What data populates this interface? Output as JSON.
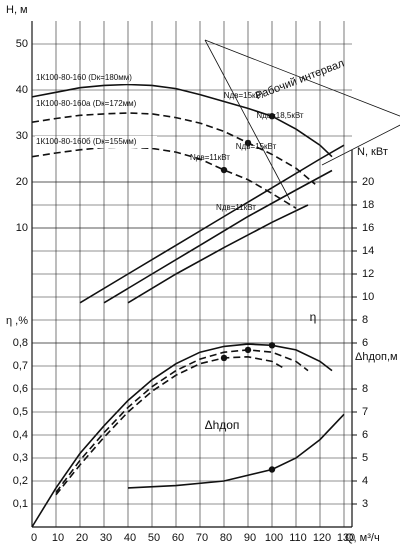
{
  "chart_data": [
    {
      "type": "line",
      "y_label": "H, м",
      "y2_label": "N, кВт",
      "xlim": [
        0,
        130
      ],
      "ylim": [
        0,
        55
      ],
      "yticks": [
        10,
        20,
        30,
        40,
        50
      ],
      "y2lim": [
        6,
        34
      ],
      "y2ticks": [
        6,
        8,
        10,
        12,
        14,
        16,
        18,
        20
      ],
      "grid": true,
      "series": [
        {
          "name": "1К100-80-160 (Dк=180мм)",
          "color": "#111111",
          "dash": false,
          "x": [
            0,
            10,
            20,
            30,
            40,
            50,
            60,
            70,
            80,
            90,
            100,
            110,
            120,
            125
          ],
          "values": [
            38.5,
            39.5,
            40.5,
            41,
            41.2,
            41,
            40.3,
            39,
            37.5,
            36,
            34.3,
            31.5,
            28,
            25.5
          ],
          "marker": {
            "x": 100,
            "value": 34.3
          }
        },
        {
          "name": "1К100-80-160а (Dк=172мм)",
          "color": "#111111",
          "dash": true,
          "x": [
            0,
            10,
            20,
            30,
            40,
            50,
            60,
            70,
            80,
            90,
            100,
            110,
            118
          ],
          "values": [
            33,
            33.8,
            34.5,
            34.8,
            35,
            34.8,
            34,
            32.8,
            31,
            28.5,
            26,
            23,
            19.5
          ],
          "marker": {
            "x": 90,
            "value": 28.5
          }
        },
        {
          "name": "1К100-80-160б (Dк=155мм)",
          "color": "#111111",
          "dash": true,
          "x": [
            0,
            10,
            20,
            30,
            40,
            50,
            60,
            70,
            80,
            90,
            100,
            110
          ],
          "values": [
            25.5,
            26.3,
            27,
            27.5,
            27.6,
            27.3,
            26.5,
            25,
            22.6,
            20.5,
            17.5,
            14.3
          ],
          "marker": {
            "x": 80,
            "value": 22.6
          }
        },
        {
          "axis": "y2",
          "color": "#111111",
          "dash": false,
          "x": [
            20,
            40,
            60,
            80,
            100,
            120,
            130
          ],
          "values": [
            9.5,
            12,
            14.5,
            17,
            19.5,
            22,
            23.2
          ]
        },
        {
          "axis": "y2",
          "color": "#111111",
          "dash": false,
          "x": [
            30,
            50,
            70,
            90,
            110,
            125
          ],
          "values": [
            9.5,
            12,
            14.5,
            17,
            19.3,
            21
          ]
        },
        {
          "axis": "y2",
          "color": "#111111",
          "dash": false,
          "x": [
            40,
            60,
            80,
            100,
            115
          ],
          "values": [
            9.5,
            12,
            14.3,
            16.5,
            18
          ]
        }
      ],
      "annotations": [
        "Рабочий интервал",
        "Nдв=15кВт",
        "Nдв=18,5кВт",
        "Nдв=15кВт",
        "Nдв=11кВт",
        "Nдв=11кВт"
      ]
    },
    {
      "type": "line",
      "x_label": "Q, м³/ч",
      "y_label": "η ,%",
      "y2_label": "Δhдоп,м",
      "xlim": [
        0,
        130
      ],
      "xticks": [
        0,
        10,
        20,
        30,
        40,
        50,
        60,
        70,
        80,
        90,
        100,
        110,
        120,
        130
      ],
      "ylim": [
        0,
        0.85
      ],
      "yticks": [
        {
          "value": 0.1,
          "label": "0,1"
        },
        {
          "value": 0.2,
          "label": "0,2"
        },
        {
          "value": 0.3,
          "label": "0,3"
        },
        {
          "value": 0.4,
          "label": "0,4"
        },
        {
          "value": 0.5,
          "label": "0,5"
        },
        {
          "value": 0.6,
          "label": "0,6"
        },
        {
          "value": 0.7,
          "label": "0,7"
        },
        {
          "value": 0.8,
          "label": "0,8"
        }
      ],
      "y2lim": [
        2,
        10.5
      ],
      "y2ticks": [
        3,
        4,
        5,
        6,
        7,
        8
      ],
      "grid": true,
      "series": [
        {
          "color": "#111111",
          "dash": false,
          "x": [
            0,
            10,
            20,
            30,
            40,
            50,
            60,
            70,
            80,
            90,
            100,
            110,
            120,
            125
          ],
          "values": [
            0,
            0.17,
            0.32,
            0.44,
            0.55,
            0.64,
            0.71,
            0.76,
            0.785,
            0.795,
            0.79,
            0.77,
            0.72,
            0.68
          ],
          "marker": {
            "x": 100,
            "value": 0.79
          }
        },
        {
          "color": "#111111",
          "dash": true,
          "x": [
            10,
            20,
            30,
            40,
            50,
            60,
            70,
            80,
            90,
            100,
            110,
            115
          ],
          "values": [
            0.15,
            0.29,
            0.41,
            0.52,
            0.61,
            0.68,
            0.73,
            0.76,
            0.77,
            0.76,
            0.72,
            0.68
          ],
          "marker": {
            "x": 90,
            "value": 0.77
          }
        },
        {
          "color": "#111111",
          "dash": true,
          "x": [
            10,
            20,
            30,
            40,
            50,
            60,
            70,
            80,
            90,
            100,
            105
          ],
          "values": [
            0.14,
            0.27,
            0.39,
            0.5,
            0.59,
            0.66,
            0.71,
            0.735,
            0.74,
            0.72,
            0.69
          ],
          "marker": {
            "x": 80,
            "value": 0.735
          }
        },
        {
          "axis": "y2",
          "color": "#111111",
          "dash": false,
          "x": [
            40,
            60,
            80,
            100,
            110,
            120,
            130
          ],
          "values": [
            3.7,
            3.8,
            4.0,
            4.5,
            5.0,
            5.8,
            6.9
          ],
          "marker": {
            "x": 100,
            "value": 4.5
          }
        }
      ],
      "annotations": [
        "η",
        "Δhдоп"
      ]
    }
  ]
}
